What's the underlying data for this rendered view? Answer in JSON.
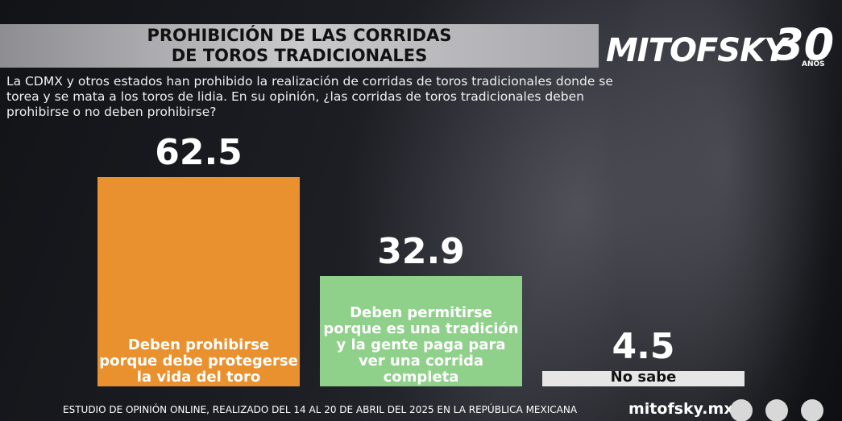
{
  "header": {
    "title_lines": [
      "PROHIBICIÓN DE LAS CORRIDAS",
      "DE TOROS TRADICIONALES"
    ],
    "logo": "MITOFSKY",
    "logo_anniversary": "30",
    "logo_years": "AÑOS"
  },
  "question": "La CDMX y otros estados han prohibido la realización de corridas de toros tradicionales donde se torea y se mata a los toros de lidia. En su opinión, ¿las corridas de toros tradicionales deben prohibirse o no deben prohibirse?",
  "chart_data": {
    "type": "bar",
    "categories": [
      "Deben prohibirse porque debe protegerse la vida del toro",
      "Deben permitirse porque es una tradición y la gente paga para ver una corrida completa",
      "No sabe"
    ],
    "values": [
      62.5,
      32.9,
      4.5
    ],
    "colors": [
      "#e8912e",
      "#8fd18b",
      "#e6e6e6"
    ],
    "label_colors": [
      "#ffffff",
      "#ffffff",
      "#111111"
    ]
  },
  "footer": {
    "note": "ESTUDIO DE OPINIÓN ONLINE, REALIZADO DEL 14 AL 20 DE ABRIL DEL 2025 EN LA REPÚBLICA MEXICANA",
    "website": "mitofsky.mx"
  }
}
